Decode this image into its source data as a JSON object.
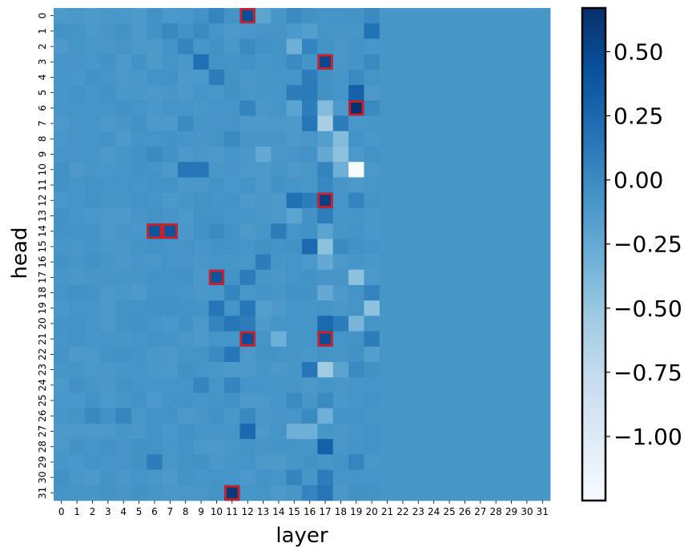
{
  "chart_data": {
    "type": "heatmap",
    "xlabel": "layer",
    "ylabel": "head",
    "x_categories": [
      "0",
      "1",
      "2",
      "3",
      "4",
      "5",
      "6",
      "7",
      "8",
      "9",
      "10",
      "11",
      "12",
      "13",
      "14",
      "15",
      "16",
      "17",
      "18",
      "19",
      "20",
      "21",
      "22",
      "23",
      "24",
      "25",
      "26",
      "27",
      "28",
      "29",
      "30",
      "31"
    ],
    "y_categories": [
      "0",
      "1",
      "2",
      "3",
      "4",
      "5",
      "6",
      "7",
      "8",
      "9",
      "10",
      "11",
      "12",
      "13",
      "14",
      "15",
      "16",
      "17",
      "18",
      "19",
      "20",
      "21",
      "22",
      "23",
      "24",
      "25",
      "26",
      "27",
      "28",
      "29",
      "30",
      "31"
    ],
    "colorbar": {
      "ticks": [
        0.5,
        0.25,
        0.0,
        -0.25,
        -0.5,
        -0.75,
        -1.0
      ],
      "tick_labels": [
        "0.50",
        "0.25",
        "0.00",
        "−0.25",
        "−0.50",
        "−0.75",
        "−1.00"
      ],
      "vmin": -1.25,
      "vmax": 0.67,
      "cmap": "Blues"
    },
    "baseline_value": -0.08,
    "cells": [
      {
        "head": 0,
        "layer": 10,
        "value": 0.05
      },
      {
        "head": 0,
        "layer": 12,
        "value": 0.45
      },
      {
        "head": 0,
        "layer": 13,
        "value": -0.2
      },
      {
        "head": 0,
        "layer": 15,
        "value": 0.0
      },
      {
        "head": 0,
        "layer": 20,
        "value": 0.0
      },
      {
        "head": 1,
        "layer": 7,
        "value": 0.02
      },
      {
        "head": 1,
        "layer": 9,
        "value": 0.0
      },
      {
        "head": 1,
        "layer": 16,
        "value": -0.15
      },
      {
        "head": 1,
        "layer": 20,
        "value": 0.18
      },
      {
        "head": 2,
        "layer": 8,
        "value": 0.05
      },
      {
        "head": 2,
        "layer": 12,
        "value": 0.0
      },
      {
        "head": 2,
        "layer": 15,
        "value": -0.3
      },
      {
        "head": 2,
        "layer": 16,
        "value": 0.05
      },
      {
        "head": 3,
        "layer": 9,
        "value": 0.2
      },
      {
        "head": 3,
        "layer": 17,
        "value": 0.5
      },
      {
        "head": 3,
        "layer": 15,
        "value": 0.0
      },
      {
        "head": 3,
        "layer": 20,
        "value": 0.0
      },
      {
        "head": 4,
        "layer": 10,
        "value": 0.1
      },
      {
        "head": 4,
        "layer": 16,
        "value": 0.1
      },
      {
        "head": 4,
        "layer": 19,
        "value": 0.0
      },
      {
        "head": 5,
        "layer": 15,
        "value": 0.1
      },
      {
        "head": 5,
        "layer": 16,
        "value": 0.12
      },
      {
        "head": 5,
        "layer": 19,
        "value": 0.3
      },
      {
        "head": 6,
        "layer": 12,
        "value": 0.05
      },
      {
        "head": 6,
        "layer": 15,
        "value": -0.2
      },
      {
        "head": 6,
        "layer": 16,
        "value": 0.1
      },
      {
        "head": 6,
        "layer": 17,
        "value": -0.4
      },
      {
        "head": 6,
        "layer": 19,
        "value": 0.66
      },
      {
        "head": 6,
        "layer": 20,
        "value": 0.0
      },
      {
        "head": 7,
        "layer": 8,
        "value": 0.0
      },
      {
        "head": 7,
        "layer": 16,
        "value": 0.15
      },
      {
        "head": 7,
        "layer": 17,
        "value": -0.6
      },
      {
        "head": 7,
        "layer": 18,
        "value": 0.1
      },
      {
        "head": 8,
        "layer": 11,
        "value": 0.0
      },
      {
        "head": 8,
        "layer": 17,
        "value": -0.15
      },
      {
        "head": 8,
        "layer": 18,
        "value": -0.4
      },
      {
        "head": 9,
        "layer": 6,
        "value": 0.0
      },
      {
        "head": 9,
        "layer": 13,
        "value": -0.25
      },
      {
        "head": 9,
        "layer": 17,
        "value": -0.25
      },
      {
        "head": 9,
        "layer": 18,
        "value": -0.45
      },
      {
        "head": 10,
        "layer": 8,
        "value": 0.15
      },
      {
        "head": 10,
        "layer": 9,
        "value": 0.15
      },
      {
        "head": 10,
        "layer": 17,
        "value": 0.05
      },
      {
        "head": 10,
        "layer": 18,
        "value": -0.3
      },
      {
        "head": 10,
        "layer": 19,
        "value": -1.25
      },
      {
        "head": 11,
        "layer": 17,
        "value": 0.02
      },
      {
        "head": 12,
        "layer": 15,
        "value": 0.2
      },
      {
        "head": 12,
        "layer": 16,
        "value": 0.1
      },
      {
        "head": 12,
        "layer": 17,
        "value": 0.55
      },
      {
        "head": 12,
        "layer": 19,
        "value": 0.05
      },
      {
        "head": 13,
        "layer": 15,
        "value": -0.2
      },
      {
        "head": 13,
        "layer": 17,
        "value": 0.1
      },
      {
        "head": 14,
        "layer": 6,
        "value": 0.4
      },
      {
        "head": 14,
        "layer": 7,
        "value": 0.4
      },
      {
        "head": 14,
        "layer": 10,
        "value": 0.0
      },
      {
        "head": 14,
        "layer": 14,
        "value": 0.1
      },
      {
        "head": 14,
        "layer": 17,
        "value": -0.2
      },
      {
        "head": 15,
        "layer": 16,
        "value": 0.25
      },
      {
        "head": 15,
        "layer": 17,
        "value": -0.45
      },
      {
        "head": 15,
        "layer": 18,
        "value": 0.0
      },
      {
        "head": 16,
        "layer": 13,
        "value": 0.1
      },
      {
        "head": 16,
        "layer": 17,
        "value": -0.25
      },
      {
        "head": 17,
        "layer": 10,
        "value": 0.4
      },
      {
        "head": 17,
        "layer": 12,
        "value": 0.1
      },
      {
        "head": 17,
        "layer": 19,
        "value": -0.45
      },
      {
        "head": 18,
        "layer": 11,
        "value": 0.05
      },
      {
        "head": 18,
        "layer": 17,
        "value": -0.25
      },
      {
        "head": 18,
        "layer": 20,
        "value": 0.05
      },
      {
        "head": 19,
        "layer": 10,
        "value": 0.15
      },
      {
        "head": 19,
        "layer": 12,
        "value": 0.15
      },
      {
        "head": 19,
        "layer": 13,
        "value": -0.15
      },
      {
        "head": 19,
        "layer": 20,
        "value": -0.45
      },
      {
        "head": 20,
        "layer": 10,
        "value": 0.05
      },
      {
        "head": 20,
        "layer": 11,
        "value": 0.15
      },
      {
        "head": 20,
        "layer": 12,
        "value": 0.1
      },
      {
        "head": 20,
        "layer": 17,
        "value": 0.25
      },
      {
        "head": 20,
        "layer": 18,
        "value": 0.1
      },
      {
        "head": 20,
        "layer": 19,
        "value": -0.35
      },
      {
        "head": 21,
        "layer": 12,
        "value": 0.45
      },
      {
        "head": 21,
        "layer": 14,
        "value": -0.3
      },
      {
        "head": 21,
        "layer": 17,
        "value": 0.45
      },
      {
        "head": 21,
        "layer": 20,
        "value": 0.1
      },
      {
        "head": 22,
        "layer": 10,
        "value": 0.0
      },
      {
        "head": 22,
        "layer": 11,
        "value": 0.15
      },
      {
        "head": 22,
        "layer": 20,
        "value": -0.15
      },
      {
        "head": 23,
        "layer": 16,
        "value": 0.15
      },
      {
        "head": 23,
        "layer": 17,
        "value": -0.55
      },
      {
        "head": 23,
        "layer": 18,
        "value": -0.2
      },
      {
        "head": 23,
        "layer": 19,
        "value": 0.0
      },
      {
        "head": 24,
        "layer": 9,
        "value": 0.05
      },
      {
        "head": 24,
        "layer": 11,
        "value": 0.05
      },
      {
        "head": 25,
        "layer": 15,
        "value": 0.0
      },
      {
        "head": 25,
        "layer": 17,
        "value": 0.0
      },
      {
        "head": 26,
        "layer": 2,
        "value": 0.02
      },
      {
        "head": 26,
        "layer": 4,
        "value": 0.05
      },
      {
        "head": 26,
        "layer": 12,
        "value": 0.02
      },
      {
        "head": 26,
        "layer": 16,
        "value": 0.0
      },
      {
        "head": 26,
        "layer": 17,
        "value": -0.3
      },
      {
        "head": 27,
        "layer": 12,
        "value": 0.25
      },
      {
        "head": 27,
        "layer": 15,
        "value": -0.3
      },
      {
        "head": 27,
        "layer": 16,
        "value": -0.3
      },
      {
        "head": 28,
        "layer": 17,
        "value": 0.3
      },
      {
        "head": 29,
        "layer": 6,
        "value": 0.1
      },
      {
        "head": 29,
        "layer": 19,
        "value": 0.05
      },
      {
        "head": 30,
        "layer": 15,
        "value": 0.05
      },
      {
        "head": 30,
        "layer": 17,
        "value": 0.1
      },
      {
        "head": 31,
        "layer": 11,
        "value": 0.6
      },
      {
        "head": 31,
        "layer": 16,
        "value": 0.05
      },
      {
        "head": 31,
        "layer": 17,
        "value": 0.15
      }
    ],
    "highlighted_cells": [
      {
        "head": 0,
        "layer": 12
      },
      {
        "head": 3,
        "layer": 17
      },
      {
        "head": 6,
        "layer": 19
      },
      {
        "head": 12,
        "layer": 17
      },
      {
        "head": 14,
        "layer": 6
      },
      {
        "head": 14,
        "layer": 7
      },
      {
        "head": 17,
        "layer": 10
      },
      {
        "head": 21,
        "layer": 12
      },
      {
        "head": 21,
        "layer": 17
      },
      {
        "head": 31,
        "layer": 11
      }
    ],
    "highlight_color": "#e31a1c"
  }
}
